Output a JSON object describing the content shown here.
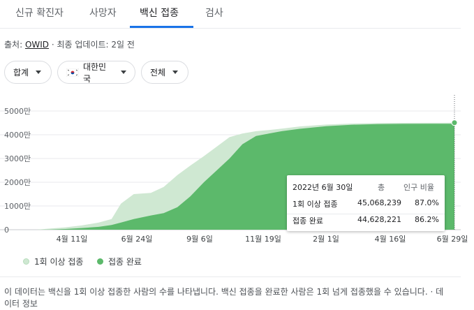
{
  "tabs": [
    {
      "label": "신규 확진자"
    },
    {
      "label": "사망자"
    },
    {
      "label": "백신 접종"
    },
    {
      "label": "검사"
    }
  ],
  "source": {
    "prefix": "출처: ",
    "link": "OWID",
    "suffix": " · 최종 업데이트: 2일 전"
  },
  "filters": [
    {
      "label": "합계"
    },
    {
      "label": "대한민국",
      "icon": "korea-flag-icon"
    },
    {
      "label": "전체"
    }
  ],
  "colors": {
    "light_series": "#cfe8d2",
    "dark_series": "#5cb96b",
    "accent": "#1a73e8"
  },
  "chart_data": {
    "type": "area",
    "x_ticks": [
      "4월 11일",
      "6월 24일",
      "9월 6일",
      "11월 19일",
      "2월 1일",
      "4월 16일",
      "6월 29일"
    ],
    "y_ticks": [
      "0",
      "1000만",
      "2000만",
      "3000만",
      "4000만",
      "5000만"
    ],
    "ylim": [
      0,
      50000000
    ],
    "x": [
      "2021-02-26",
      "2021-03-15",
      "2021-04-01",
      "2021-04-20",
      "2021-05-10",
      "2021-05-25",
      "2021-06-05",
      "2021-06-20",
      "2021-07-10",
      "2021-07-25",
      "2021-08-10",
      "2021-08-25",
      "2021-09-10",
      "2021-09-25",
      "2021-10-10",
      "2021-10-25",
      "2021-11-10",
      "2021-11-25",
      "2021-12-10",
      "2021-12-31",
      "2022-01-31",
      "2022-03-01",
      "2022-04-01",
      "2022-05-01",
      "2022-06-01",
      "2022-06-30"
    ],
    "series": [
      {
        "name": "1회 이상 접종",
        "values": [
          0,
          500000,
          1000000,
          1800000,
          3000000,
          4500000,
          11000000,
          15000000,
          15500000,
          18000000,
          23000000,
          27000000,
          31000000,
          35000000,
          39000000,
          40500000,
          41500000,
          42000000,
          42600000,
          43500000,
          44300000,
          44700000,
          44900000,
          45000000,
          45040000,
          45068239
        ]
      },
      {
        "name": "접종 완료",
        "values": [
          0,
          100000,
          300000,
          700000,
          1200000,
          2000000,
          3000000,
          4500000,
          6000000,
          7000000,
          9500000,
          14000000,
          20000000,
          25000000,
          30000000,
          36000000,
          39500000,
          40500000,
          41500000,
          42500000,
          43600000,
          44200000,
          44500000,
          44600000,
          44615000,
          44628221
        ]
      }
    ]
  },
  "tooltip": {
    "date": "2022년 6월 30일",
    "col_total": "총",
    "col_ratio": "인구 비율",
    "rows": [
      {
        "label": "1회 이상 접종",
        "total": "45,068,239",
        "ratio": "87.0%"
      },
      {
        "label": "접종 완료",
        "total": "44,628,221",
        "ratio": "86.2%"
      }
    ]
  },
  "legend": [
    {
      "label": "1회 이상 접종"
    },
    {
      "label": "접종 완료"
    }
  ],
  "footnote": "이 데이터는 백신을 1회 이상 접종한 사람의 수를 나타냅니다. 백신 접종을 완료한 사람은 1회 넘게 접종했을 수 있습니다. · 데이터 정보"
}
